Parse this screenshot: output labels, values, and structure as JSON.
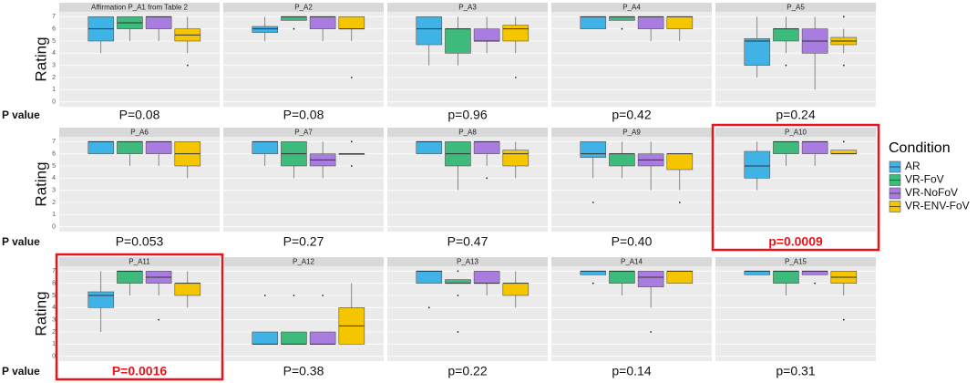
{
  "chart_data": {
    "type": "box",
    "ylabel": "Rating",
    "p_label": "P value",
    "legend_title": "Condition",
    "ylim": [
      -0.4,
      7.4
    ],
    "yticks": [
      0,
      1,
      2,
      3,
      4,
      5,
      6,
      7
    ],
    "series": [
      {
        "name": "AR",
        "color": "#3fb3e6"
      },
      {
        "name": "VR-FoV",
        "color": "#3dbb7c"
      },
      {
        "name": "VR-NoFoV",
        "color": "#a97ddf"
      },
      {
        "name": "VR-ENV-FoV",
        "color": "#f5c600"
      }
    ],
    "panels": [
      {
        "title": "Affirmation P_A1  from Table 2",
        "p_value": "P=0.08",
        "highlight": false,
        "boxes": [
          {
            "q1": 5,
            "median": 6,
            "q3": 7,
            "low": 4,
            "high": 7,
            "outliers": []
          },
          {
            "q1": 6,
            "median": 6.5,
            "q3": 7,
            "low": 5,
            "high": 7,
            "outliers": []
          },
          {
            "q1": 6,
            "median": 7,
            "q3": 7,
            "low": 5,
            "high": 7,
            "outliers": []
          },
          {
            "q1": 5,
            "median": 5.5,
            "q3": 6,
            "low": 4,
            "high": 7,
            "outliers": [
              3
            ]
          }
        ]
      },
      {
        "title": "P_A2",
        "p_value": "P=0.08",
        "highlight": false,
        "boxes": [
          {
            "q1": 5.7,
            "median": 6,
            "q3": 6.2,
            "low": 5,
            "high": 7,
            "outliers": []
          },
          {
            "q1": 6.7,
            "median": 7,
            "q3": 7,
            "low": 6.7,
            "high": 7,
            "outliers": [
              6
            ]
          },
          {
            "q1": 6,
            "median": 7,
            "q3": 7,
            "low": 5,
            "high": 7,
            "outliers": []
          },
          {
            "q1": 6,
            "median": 6,
            "q3": 7,
            "low": 5,
            "high": 7,
            "outliers": [
              2
            ]
          }
        ]
      },
      {
        "title": "P_A3",
        "p_value": "p=0.96",
        "highlight": false,
        "boxes": [
          {
            "q1": 4.7,
            "median": 6,
            "q3": 7,
            "low": 3,
            "high": 7,
            "outliers": []
          },
          {
            "q1": 4,
            "median": 6,
            "q3": 6,
            "low": 3,
            "high": 7,
            "outliers": []
          },
          {
            "q1": 5,
            "median": 5,
            "q3": 6,
            "low": 4,
            "high": 7,
            "outliers": []
          },
          {
            "q1": 5,
            "median": 6,
            "q3": 6.3,
            "low": 4,
            "high": 7,
            "outliers": [
              2
            ]
          }
        ]
      },
      {
        "title": "P_A4",
        "p_value": "p=0.42",
        "highlight": false,
        "boxes": [
          {
            "q1": 6,
            "median": 7,
            "q3": 7,
            "low": 6,
            "high": 7,
            "outliers": []
          },
          {
            "q1": 6.7,
            "median": 7,
            "q3": 7,
            "low": 6.7,
            "high": 7,
            "outliers": [
              6
            ]
          },
          {
            "q1": 6,
            "median": 7,
            "q3": 7,
            "low": 5,
            "high": 7,
            "outliers": []
          },
          {
            "q1": 6,
            "median": 7,
            "q3": 7,
            "low": 5,
            "high": 7,
            "outliers": []
          }
        ]
      },
      {
        "title": "P_A5",
        "p_value": "p=0.24",
        "highlight": false,
        "boxes": [
          {
            "q1": 3,
            "median": 5,
            "q3": 5.2,
            "low": 2,
            "high": 7,
            "outliers": []
          },
          {
            "q1": 5,
            "median": 6,
            "q3": 6,
            "low": 4,
            "high": 7,
            "outliers": [
              3
            ]
          },
          {
            "q1": 4,
            "median": 5,
            "q3": 6,
            "low": 1,
            "high": 7,
            "outliers": []
          },
          {
            "q1": 4.7,
            "median": 5,
            "q3": 5.3,
            "low": 4,
            "high": 6,
            "outliers": [
              7,
              3
            ]
          }
        ]
      },
      {
        "title": "P_A6",
        "p_value": "P=0.053",
        "highlight": false,
        "boxes": [
          {
            "q1": 6,
            "median": 7,
            "q3": 7,
            "low": 6,
            "high": 7,
            "outliers": []
          },
          {
            "q1": 6,
            "median": 7,
            "q3": 7,
            "low": 5,
            "high": 7,
            "outliers": []
          },
          {
            "q1": 6,
            "median": 7,
            "q3": 7,
            "low": 5,
            "high": 7,
            "outliers": []
          },
          {
            "q1": 5,
            "median": 6,
            "q3": 7,
            "low": 4,
            "high": 7,
            "outliers": []
          }
        ]
      },
      {
        "title": "P_A7",
        "p_value": "P=0.27",
        "highlight": false,
        "boxes": [
          {
            "q1": 6,
            "median": 7,
            "q3": 7,
            "low": 5,
            "high": 7,
            "outliers": []
          },
          {
            "q1": 5,
            "median": 6,
            "q3": 7,
            "low": 4,
            "high": 7,
            "outliers": []
          },
          {
            "q1": 5,
            "median": 5.5,
            "q3": 6,
            "low": 4,
            "high": 7,
            "outliers": []
          },
          {
            "q1": 6,
            "median": 6,
            "q3": 6,
            "low": 6,
            "high": 6,
            "outliers": [
              7,
              5
            ]
          }
        ]
      },
      {
        "title": "P_A8",
        "p_value": "P=0.47",
        "highlight": false,
        "boxes": [
          {
            "q1": 6,
            "median": 7,
            "q3": 7,
            "low": 6,
            "high": 7,
            "outliers": []
          },
          {
            "q1": 5,
            "median": 6,
            "q3": 7,
            "low": 3,
            "high": 7,
            "outliers": []
          },
          {
            "q1": 6,
            "median": 7,
            "q3": 7,
            "low": 5,
            "high": 7,
            "outliers": [
              4
            ]
          },
          {
            "q1": 5,
            "median": 6,
            "q3": 6.3,
            "low": 4,
            "high": 7,
            "outliers": []
          }
        ]
      },
      {
        "title": "P_A9",
        "p_value": "P=0.40",
        "highlight": false,
        "boxes": [
          {
            "q1": 5.7,
            "median": 6,
            "q3": 7,
            "low": 4,
            "high": 7,
            "outliers": [
              2
            ]
          },
          {
            "q1": 5,
            "median": 6,
            "q3": 6,
            "low": 4,
            "high": 7,
            "outliers": []
          },
          {
            "q1": 5,
            "median": 5.5,
            "q3": 6,
            "low": 3,
            "high": 7,
            "outliers": []
          },
          {
            "q1": 4.7,
            "median": 6,
            "q3": 6,
            "low": 3,
            "high": 6,
            "outliers": [
              2
            ]
          }
        ]
      },
      {
        "title": "P_A10",
        "p_value": "p=0.0009",
        "highlight": true,
        "boxes": [
          {
            "q1": 4,
            "median": 5,
            "q3": 6.2,
            "low": 3,
            "high": 7,
            "outliers": []
          },
          {
            "q1": 6,
            "median": 7,
            "q3": 7,
            "low": 5,
            "high": 7,
            "outliers": []
          },
          {
            "q1": 6,
            "median": 7,
            "q3": 7,
            "low": 5,
            "high": 7,
            "outliers": []
          },
          {
            "q1": 6,
            "median": 6,
            "q3": 6.3,
            "low": 6,
            "high": 6.3,
            "outliers": [
              7
            ]
          }
        ]
      },
      {
        "title": "P_A11",
        "p_value": "P=0.0016",
        "highlight": true,
        "boxes": [
          {
            "q1": 4,
            "median": 5,
            "q3": 5.3,
            "low": 2,
            "high": 7,
            "outliers": []
          },
          {
            "q1": 6,
            "median": 7,
            "q3": 7,
            "low": 5,
            "high": 7,
            "outliers": []
          },
          {
            "q1": 6,
            "median": 6.5,
            "q3": 7,
            "low": 5,
            "high": 7,
            "outliers": [
              3
            ]
          },
          {
            "q1": 5,
            "median": 6,
            "q3": 6,
            "low": 4,
            "high": 7,
            "outliers": []
          }
        ]
      },
      {
        "title": "P_A12",
        "p_value": "P=0.38",
        "highlight": false,
        "boxes": [
          {
            "q1": 1,
            "median": 1,
            "q3": 2,
            "low": 1,
            "high": 2,
            "outliers": [
              5
            ]
          },
          {
            "q1": 1,
            "median": 1,
            "q3": 2,
            "low": 1,
            "high": 2,
            "outliers": [
              5
            ]
          },
          {
            "q1": 1,
            "median": 1,
            "q3": 2,
            "low": 1,
            "high": 2,
            "outliers": [
              5
            ]
          },
          {
            "q1": 1,
            "median": 2.5,
            "q3": 4,
            "low": 1,
            "high": 6,
            "outliers": []
          }
        ]
      },
      {
        "title": "P_A13",
        "p_value": "p=0.22",
        "highlight": false,
        "boxes": [
          {
            "q1": 6,
            "median": 7,
            "q3": 7,
            "low": 6,
            "high": 7,
            "outliers": [
              4
            ]
          },
          {
            "q1": 6,
            "median": 6,
            "q3": 6.3,
            "low": 6,
            "high": 6.3,
            "outliers": [
              7,
              5,
              2
            ]
          },
          {
            "q1": 6,
            "median": 6,
            "q3": 7,
            "low": 5,
            "high": 7,
            "outliers": []
          },
          {
            "q1": 5,
            "median": 6,
            "q3": 6,
            "low": 4,
            "high": 7,
            "outliers": []
          }
        ]
      },
      {
        "title": "P_A14",
        "p_value": "p=0.14",
        "highlight": false,
        "boxes": [
          {
            "q1": 6.7,
            "median": 7,
            "q3": 7,
            "low": 6.7,
            "high": 7,
            "outliers": [
              6
            ]
          },
          {
            "q1": 6,
            "median": 7,
            "q3": 7,
            "low": 5,
            "high": 7,
            "outliers": []
          },
          {
            "q1": 5.7,
            "median": 6.5,
            "q3": 7,
            "low": 4,
            "high": 7,
            "outliers": [
              2
            ]
          },
          {
            "q1": 6,
            "median": 7,
            "q3": 7,
            "low": 6,
            "high": 7,
            "outliers": []
          }
        ]
      },
      {
        "title": "P_A15",
        "p_value": "p=0.31",
        "highlight": false,
        "boxes": [
          {
            "q1": 6.7,
            "median": 7,
            "q3": 7,
            "low": 6.7,
            "high": 7,
            "outliers": []
          },
          {
            "q1": 6,
            "median": 7,
            "q3": 7,
            "low": 5,
            "high": 7,
            "outliers": []
          },
          {
            "q1": 6.7,
            "median": 7,
            "q3": 7,
            "low": 6.7,
            "high": 7,
            "outliers": [
              6
            ]
          },
          {
            "q1": 6,
            "median": 6.5,
            "q3": 7,
            "low": 5,
            "high": 7,
            "outliers": [
              3
            ]
          }
        ]
      }
    ]
  }
}
